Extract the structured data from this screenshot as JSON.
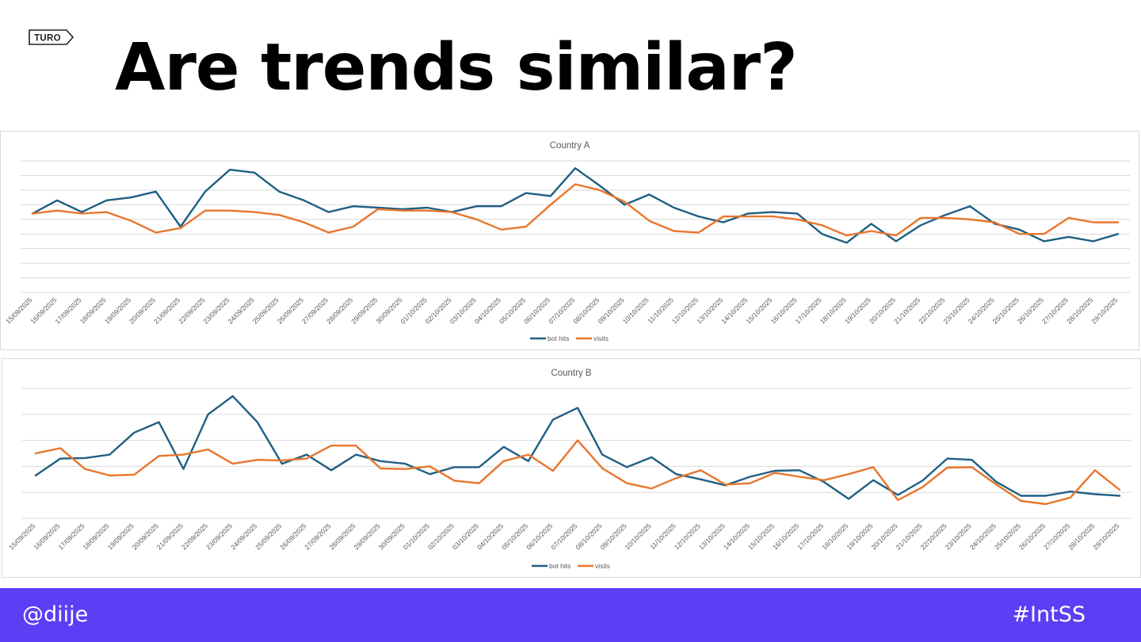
{
  "slide": {
    "logo_text": "TURO",
    "title": "Are trends similar?",
    "footer_left": "@diije",
    "footer_right": "#IntSS"
  },
  "colors": {
    "bot_hits": "#1f5f82",
    "visits": "#e8762d",
    "footer_bg": "#5b3ff5",
    "grid": "#d9d9d9"
  },
  "chart_data": [
    {
      "type": "line",
      "title": "Country A",
      "xlabel": "",
      "ylabel": "",
      "grid": true,
      "legend_position": "bottom",
      "ylim": [
        0,
        9
      ],
      "categories": [
        "15/09/2025",
        "16/09/2025",
        "17/09/2025",
        "18/09/2025",
        "19/09/2025",
        "20/09/2025",
        "21/09/2025",
        "22/09/2025",
        "23/09/2025",
        "24/09/2025",
        "25/09/2025",
        "26/09/2025",
        "27/09/2025",
        "28/09/2025",
        "29/09/2025",
        "30/09/2025",
        "01/10/2025",
        "02/10/2025",
        "03/10/2025",
        "04/10/2025",
        "05/10/2025",
        "06/10/2025",
        "07/10/2025",
        "08/10/2025",
        "09/10/2025",
        "10/10/2025",
        "11/10/2025",
        "12/10/2025",
        "13/10/2025",
        "14/10/2025",
        "15/10/2025",
        "16/10/2025",
        "17/10/2025",
        "18/10/2025",
        "19/10/2025",
        "20/10/2025",
        "21/10/2025",
        "22/10/2025",
        "23/10/2025",
        "24/10/2025",
        "25/10/2025",
        "26/10/2025",
        "27/10/2025",
        "28/10/2025",
        "29/10/2025"
      ],
      "series": [
        {
          "name": "bot hits",
          "values": [
            5.4,
            6.3,
            5.5,
            6.3,
            6.5,
            6.9,
            4.5,
            6.9,
            8.4,
            8.2,
            6.9,
            6.3,
            5.5,
            5.9,
            5.8,
            5.7,
            5.8,
            5.5,
            5.9,
            5.9,
            6.8,
            6.6,
            8.5,
            7.3,
            6.0,
            6.7,
            5.8,
            5.2,
            4.8,
            5.4,
            5.5,
            5.4,
            4.0,
            3.4,
            4.7,
            3.5,
            4.6,
            5.3,
            5.9,
            4.7,
            4.3,
            3.5,
            3.8,
            3.5,
            4.0
          ]
        },
        {
          "name": "visits",
          "values": [
            5.4,
            5.6,
            5.4,
            5.5,
            4.9,
            4.1,
            4.4,
            5.6,
            5.6,
            5.5,
            5.3,
            4.8,
            4.1,
            4.5,
            5.7,
            5.6,
            5.6,
            5.5,
            5.0,
            4.3,
            4.5,
            6.0,
            7.4,
            7.0,
            6.2,
            4.9,
            4.2,
            4.1,
            5.2,
            5.2,
            5.2,
            5.0,
            4.6,
            3.9,
            4.2,
            3.9,
            5.1,
            5.1,
            5.0,
            4.8,
            4.0,
            4.0,
            5.1,
            4.8,
            4.8
          ]
        }
      ]
    },
    {
      "type": "line",
      "title": "Country B",
      "xlabel": "",
      "ylabel": "",
      "grid": true,
      "legend_position": "bottom",
      "ylim": [
        0,
        5
      ],
      "categories": [
        "15/09/2025",
        "16/09/2025",
        "17/09/2025",
        "18/09/2025",
        "19/09/2025",
        "20/09/2025",
        "21/09/2025",
        "22/09/2025",
        "23/09/2025",
        "24/09/2025",
        "25/09/2025",
        "26/09/2025",
        "27/09/2025",
        "28/09/2025",
        "29/09/2025",
        "30/09/2025",
        "01/10/2025",
        "02/10/2025",
        "03/10/2025",
        "04/10/2025",
        "05/10/2025",
        "06/10/2025",
        "07/10/2025",
        "08/10/2025",
        "09/10/2025",
        "10/10/2025",
        "11/10/2025",
        "12/10/2025",
        "13/10/2025",
        "14/10/2025",
        "15/10/2025",
        "16/10/2025",
        "17/10/2025",
        "18/10/2025",
        "19/10/2025",
        "20/10/2025",
        "21/10/2025",
        "22/10/2025",
        "23/10/2025",
        "24/10/2025",
        "25/10/2025",
        "26/10/2025",
        "27/10/2025",
        "28/10/2025",
        "29/10/2025"
      ],
      "series": [
        {
          "name": "bot hits",
          "values": [
            1.65,
            2.3,
            2.32,
            2.45,
            3.3,
            3.7,
            1.9,
            4.0,
            4.7,
            3.7,
            2.1,
            2.45,
            1.85,
            2.45,
            2.2,
            2.1,
            1.7,
            1.97,
            1.97,
            2.75,
            2.2,
            3.8,
            4.25,
            2.45,
            1.97,
            2.35,
            1.7,
            1.5,
            1.27,
            1.6,
            1.83,
            1.85,
            1.4,
            0.75,
            1.47,
            0.9,
            1.45,
            2.3,
            2.25,
            1.4,
            0.87,
            0.87,
            1.03,
            0.93,
            0.87
          ]
        },
        {
          "name": "visits",
          "values": [
            2.5,
            2.7,
            1.9,
            1.65,
            1.68,
            2.4,
            2.45,
            2.65,
            2.1,
            2.25,
            2.23,
            2.3,
            2.8,
            2.8,
            1.92,
            1.9,
            2.0,
            1.45,
            1.35,
            2.2,
            2.45,
            1.83,
            3.0,
            1.93,
            1.35,
            1.15,
            1.55,
            1.85,
            1.3,
            1.35,
            1.75,
            1.6,
            1.47,
            1.7,
            1.97,
            0.7,
            1.2,
            1.95,
            1.97,
            1.3,
            0.67,
            0.55,
            0.8,
            1.85,
            1.1
          ]
        }
      ]
    }
  ]
}
